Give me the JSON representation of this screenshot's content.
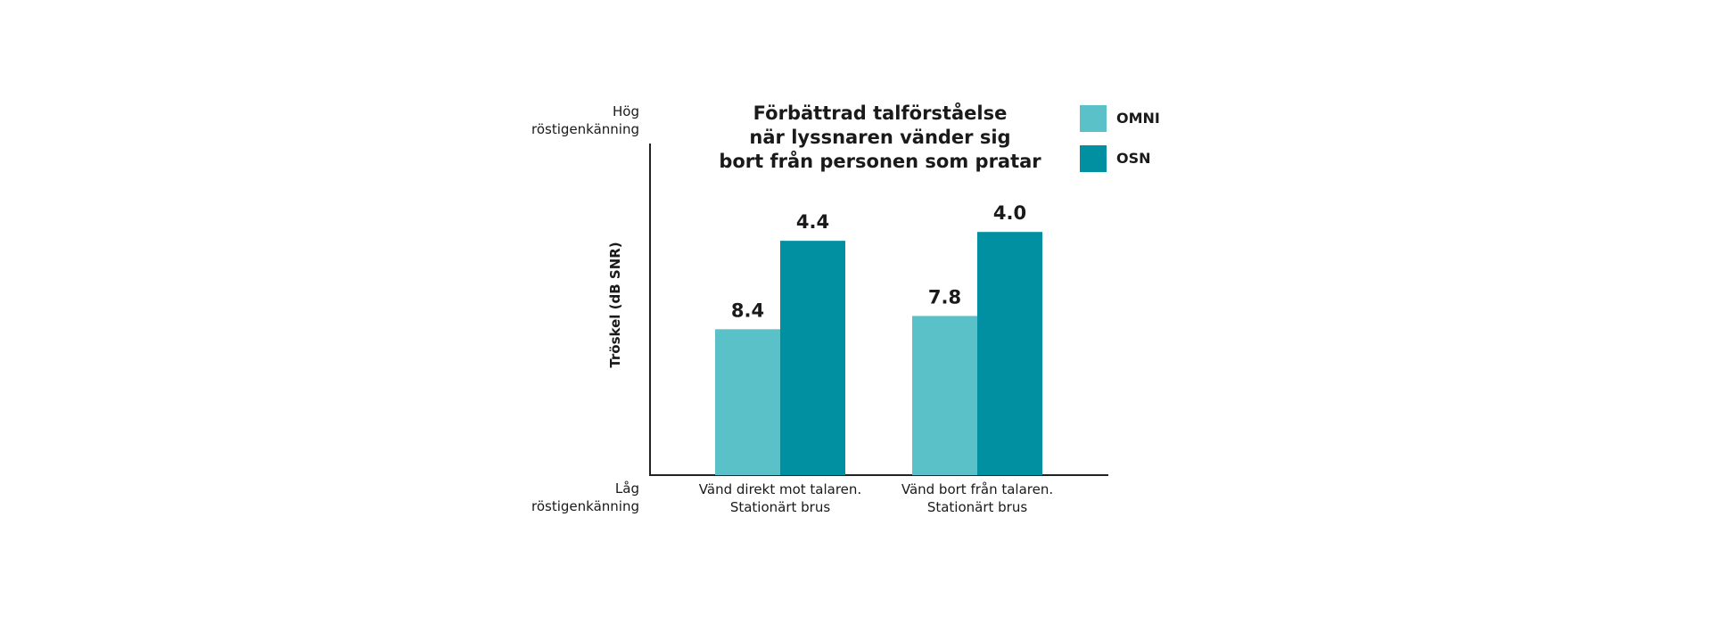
{
  "chart_data": {
    "type": "bar",
    "title": [
      "Förbättrad talförståelse",
      "när lyssnaren vänder sig",
      "bort från personen som pratar"
    ],
    "ylabel": "Tröskel (dB SNR)",
    "y_high_label": [
      "Hög",
      "röstigenkänning"
    ],
    "y_low_label": [
      "Låg",
      "röstigenkänning"
    ],
    "categories": [
      [
        "Vänd direkt mot talaren.",
        "Stationärt brus"
      ],
      [
        "Vänd bort från talaren.",
        "Stationärt brus"
      ]
    ],
    "series": [
      {
        "name": "OMNI",
        "color": "#5bc1c8",
        "values": [
          8.4,
          7.8
        ]
      },
      {
        "name": "OSN",
        "color": "#0090a1",
        "values": [
          4.4,
          4.0
        ]
      }
    ],
    "y_axis_inverted": true,
    "ylim": [
      15,
      0
    ],
    "grid": false,
    "legend_position": "top-right"
  }
}
